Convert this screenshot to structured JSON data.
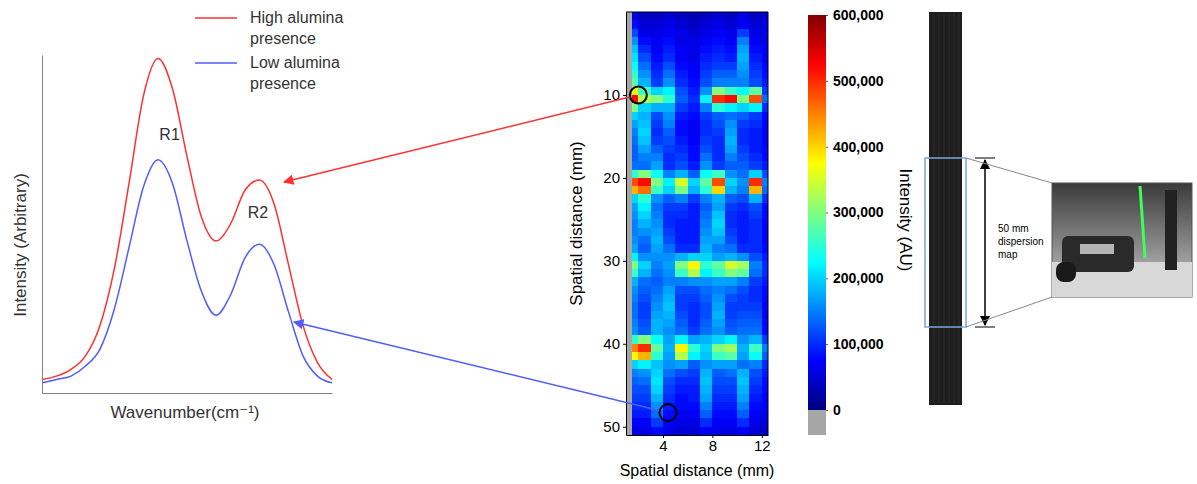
{
  "chart_data": [
    {
      "type": "line",
      "x_label": "Wavenumber(cm⁻¹)",
      "y_label": "Intensity (Arbitrary)",
      "x": [
        0,
        5,
        10,
        15,
        20,
        25,
        30,
        35,
        40,
        45,
        50,
        55,
        60,
        65,
        70,
        75,
        80,
        85,
        90,
        95,
        100
      ],
      "series": [
        {
          "name": "High alumina presence",
          "color": "#ff3030",
          "values": [
            4,
            5,
            7,
            11,
            20,
            37,
            62,
            88,
            99,
            90,
            70,
            52,
            45,
            50,
            60,
            63,
            56,
            38,
            20,
            9,
            4
          ]
        },
        {
          "name": "Low alumina presence",
          "color": "#4f5dff",
          "values": [
            3,
            4,
            5,
            8,
            13,
            25,
            43,
            61,
            69,
            62,
            45,
            30,
            23,
            29,
            40,
            44,
            38,
            24,
            11,
            5,
            3
          ]
        }
      ],
      "xlim": [
        0,
        100
      ],
      "ylim": [
        0,
        100
      ],
      "tick_labels": false,
      "legend": "upper right",
      "annotations": [
        {
          "text": "R1",
          "x": 44,
          "y": 76
        },
        {
          "text": "R2",
          "x": 74.5,
          "y": 53
        }
      ]
    },
    {
      "type": "heatmap",
      "x_label": "Spatial distance (mm)",
      "y_label": "Spatial distance (mm)",
      "x_edges": [
        1,
        1.5,
        2,
        3,
        4,
        5,
        6,
        7,
        8,
        9,
        10,
        11,
        12,
        12.5
      ],
      "y_edges": [
        0,
        1,
        2,
        3,
        4,
        5,
        6,
        7,
        8,
        9,
        10,
        11,
        12,
        13,
        14,
        15,
        16,
        17,
        18,
        19,
        20,
        21,
        22,
        23,
        24,
        25,
        26,
        27,
        28,
        29,
        30,
        31,
        32,
        33,
        34,
        35,
        36,
        37,
        38,
        39,
        40,
        41,
        42,
        43,
        44,
        45,
        46,
        47,
        48,
        49,
        50,
        51
      ],
      "values": [
        [
          null,
          60000,
          40000,
          40000,
          50000,
          40000,
          30000,
          40000,
          50000,
          40000,
          60000,
          40000,
          50000
        ],
        [
          null,
          80000,
          50000,
          50000,
          60000,
          50000,
          40000,
          50000,
          60000,
          50000,
          70000,
          50000,
          60000
        ],
        [
          null,
          120000,
          60000,
          60000,
          70000,
          60000,
          50000,
          60000,
          70000,
          60000,
          110000,
          60000,
          60000
        ],
        [
          null,
          160000,
          80000,
          70000,
          80000,
          60000,
          60000,
          70000,
          80000,
          70000,
          150000,
          70000,
          60000
        ],
        [
          null,
          190000,
          100000,
          70000,
          90000,
          70000,
          60000,
          80000,
          90000,
          80000,
          170000,
          80000,
          70000
        ],
        [
          null,
          210000,
          120000,
          80000,
          100000,
          70000,
          60000,
          90000,
          100000,
          90000,
          180000,
          90000,
          70000
        ],
        [
          null,
          230000,
          140000,
          90000,
          120000,
          80000,
          70000,
          100000,
          110000,
          110000,
          170000,
          100000,
          80000
        ],
        [
          null,
          250000,
          160000,
          100000,
          140000,
          90000,
          70000,
          110000,
          130000,
          130000,
          160000,
          110000,
          80000
        ],
        [
          null,
          280000,
          180000,
          110000,
          160000,
          100000,
          80000,
          120000,
          150000,
          150000,
          150000,
          120000,
          90000
        ],
        [
          null,
          380000,
          260000,
          200000,
          220000,
          120000,
          90000,
          160000,
          300000,
          260000,
          230000,
          280000,
          110000
        ],
        [
          null,
          520000,
          330000,
          300000,
          250000,
          130000,
          100000,
          220000,
          500000,
          520000,
          300000,
          480000,
          140000
        ],
        [
          null,
          300000,
          200000,
          180000,
          180000,
          110000,
          90000,
          150000,
          250000,
          220000,
          200000,
          220000,
          100000
        ],
        [
          null,
          200000,
          180000,
          120000,
          160000,
          90000,
          80000,
          110000,
          130000,
          140000,
          130000,
          110000,
          80000
        ],
        [
          null,
          170000,
          190000,
          110000,
          150000,
          80000,
          70000,
          100000,
          120000,
          160000,
          110000,
          100000,
          70000
        ],
        [
          null,
          150000,
          200000,
          100000,
          130000,
          80000,
          70000,
          100000,
          110000,
          170000,
          100000,
          90000,
          70000
        ],
        [
          null,
          140000,
          190000,
          110000,
          120000,
          90000,
          70000,
          110000,
          100000,
          180000,
          100000,
          90000,
          70000
        ],
        [
          null,
          130000,
          170000,
          130000,
          110000,
          100000,
          80000,
          120000,
          100000,
          170000,
          110000,
          90000,
          80000
        ],
        [
          null,
          130000,
          150000,
          150000,
          100000,
          110000,
          80000,
          140000,
          100000,
          150000,
          120000,
          100000,
          80000
        ],
        [
          null,
          140000,
          140000,
          170000,
          100000,
          120000,
          90000,
          160000,
          110000,
          130000,
          130000,
          110000,
          90000
        ],
        [
          null,
          250000,
          300000,
          230000,
          150000,
          180000,
          130000,
          230000,
          260000,
          160000,
          140000,
          200000,
          120000
        ],
        [
          null,
          480000,
          520000,
          300000,
          220000,
          350000,
          200000,
          280000,
          480000,
          200000,
          160000,
          500000,
          150000
        ],
        [
          null,
          420000,
          460000,
          260000,
          200000,
          300000,
          180000,
          250000,
          400000,
          180000,
          150000,
          420000,
          140000
        ],
        [
          null,
          200000,
          250000,
          160000,
          130000,
          150000,
          110000,
          150000,
          180000,
          130000,
          120000,
          180000,
          100000
        ],
        [
          null,
          170000,
          220000,
          140000,
          110000,
          110000,
          90000,
          130000,
          170000,
          110000,
          100000,
          120000,
          80000
        ],
        [
          null,
          160000,
          200000,
          150000,
          100000,
          100000,
          90000,
          140000,
          190000,
          100000,
          90000,
          110000,
          80000
        ],
        [
          null,
          150000,
          180000,
          160000,
          100000,
          90000,
          90000,
          150000,
          200000,
          100000,
          90000,
          100000,
          70000
        ],
        [
          null,
          150000,
          160000,
          170000,
          110000,
          90000,
          90000,
          160000,
          190000,
          110000,
          90000,
          100000,
          70000
        ],
        [
          null,
          160000,
          140000,
          180000,
          120000,
          90000,
          90000,
          170000,
          170000,
          120000,
          90000,
          100000,
          70000
        ],
        [
          null,
          170000,
          130000,
          170000,
          140000,
          100000,
          100000,
          180000,
          150000,
          140000,
          100000,
          100000,
          80000
        ],
        [
          null,
          220000,
          160000,
          160000,
          160000,
          180000,
          200000,
          200000,
          170000,
          180000,
          160000,
          120000,
          90000
        ],
        [
          null,
          300000,
          200000,
          150000,
          170000,
          300000,
          380000,
          250000,
          280000,
          350000,
          320000,
          150000,
          100000
        ],
        [
          null,
          260000,
          180000,
          140000,
          160000,
          260000,
          330000,
          220000,
          260000,
          300000,
          280000,
          140000,
          100000
        ],
        [
          null,
          180000,
          140000,
          130000,
          150000,
          150000,
          160000,
          160000,
          170000,
          170000,
          150000,
          110000,
          90000
        ],
        [
          null,
          160000,
          130000,
          140000,
          170000,
          120000,
          120000,
          140000,
          150000,
          140000,
          120000,
          100000,
          80000
        ],
        [
          null,
          150000,
          120000,
          150000,
          180000,
          110000,
          110000,
          130000,
          160000,
          120000,
          110000,
          100000,
          80000
        ],
        [
          null,
          140000,
          110000,
          160000,
          190000,
          110000,
          100000,
          120000,
          170000,
          110000,
          110000,
          110000,
          70000
        ],
        [
          null,
          140000,
          110000,
          170000,
          180000,
          120000,
          100000,
          120000,
          180000,
          110000,
          120000,
          120000,
          70000
        ],
        [
          null,
          150000,
          120000,
          180000,
          170000,
          130000,
          100000,
          130000,
          170000,
          120000,
          130000,
          130000,
          80000
        ],
        [
          null,
          160000,
          130000,
          180000,
          160000,
          140000,
          110000,
          140000,
          160000,
          130000,
          140000,
          140000,
          80000
        ],
        [
          null,
          250000,
          300000,
          230000,
          170000,
          220000,
          170000,
          180000,
          200000,
          220000,
          160000,
          180000,
          110000
        ],
        [
          null,
          450000,
          500000,
          280000,
          180000,
          380000,
          250000,
          200000,
          300000,
          320000,
          180000,
          260000,
          150000
        ],
        [
          null,
          380000,
          420000,
          250000,
          170000,
          330000,
          220000,
          190000,
          260000,
          280000,
          170000,
          230000,
          130000
        ],
        [
          null,
          200000,
          220000,
          190000,
          160000,
          170000,
          130000,
          160000,
          170000,
          170000,
          140000,
          150000,
          100000
        ],
        [
          null,
          150000,
          160000,
          200000,
          140000,
          120000,
          110000,
          180000,
          130000,
          140000,
          180000,
          120000,
          90000
        ],
        [
          null,
          130000,
          140000,
          210000,
          120000,
          100000,
          100000,
          190000,
          120000,
          120000,
          190000,
          110000,
          80000
        ],
        [
          null,
          120000,
          120000,
          200000,
          110000,
          90000,
          90000,
          180000,
          110000,
          110000,
          180000,
          100000,
          80000
        ],
        [
          null,
          110000,
          110000,
          180000,
          100000,
          80000,
          90000,
          170000,
          100000,
          100000,
          170000,
          90000,
          70000
        ],
        [
          null,
          100000,
          100000,
          160000,
          90000,
          80000,
          80000,
          150000,
          90000,
          90000,
          150000,
          80000,
          70000
        ],
        [
          null,
          90000,
          90000,
          140000,
          80000,
          70000,
          70000,
          130000,
          80000,
          80000,
          130000,
          70000,
          60000
        ],
        [
          null,
          70000,
          70000,
          110000,
          70000,
          60000,
          60000,
          100000,
          70000,
          70000,
          100000,
          60000,
          50000
        ],
        [
          null,
          60000,
          60000,
          80000,
          60000,
          50000,
          50000,
          70000,
          60000,
          60000,
          70000,
          50000,
          40000
        ]
      ],
      "xlim": [
        1,
        12.5
      ],
      "ylim": [
        0,
        51
      ],
      "xticks": [
        4,
        8,
        12
      ],
      "yticks": [
        10,
        20,
        30,
        40,
        50
      ],
      "colorbar_lim": [
        0,
        600000
      ],
      "colorbar_ticks": [
        0,
        {
          "value": 100000,
          "label": "100,000"
        },
        {
          "value": 200000,
          "label": "200,000"
        },
        {
          "value": 300000,
          "label": "300,000"
        },
        {
          "value": 400000,
          "label": "400,000"
        },
        {
          "value": 500000,
          "label": "500,000"
        },
        {
          "value": 600000,
          "label": "600,000"
        }
      ],
      "colorbar_title": "Intensity (AU)",
      "circled_points": [
        {
          "x": 2,
          "y": 10
        },
        {
          "x": 4.4,
          "y": 48.3
        }
      ]
    }
  ],
  "sample_strip": {
    "label": "50 mm dispersion map"
  }
}
